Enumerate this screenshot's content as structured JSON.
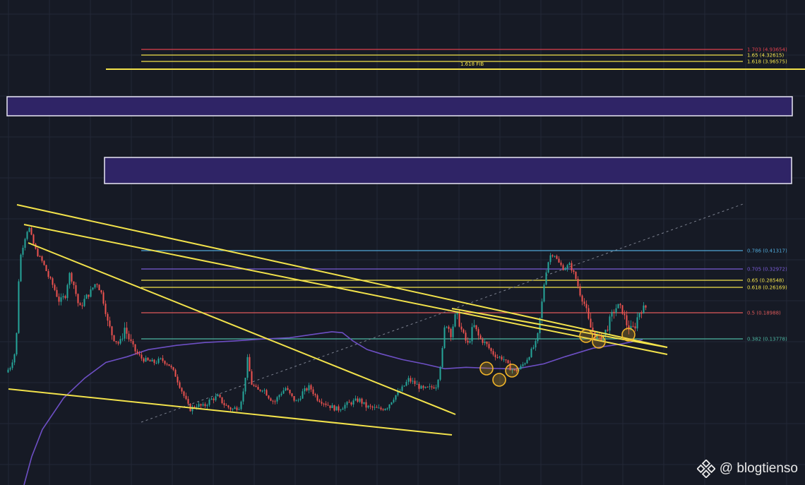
{
  "chart_data": {
    "type": "line",
    "title": "",
    "xlabel": "",
    "ylabel": "",
    "price_path": [
      [
        0,
        0.02
      ],
      [
        6,
        0.04
      ],
      [
        14,
        0.1
      ],
      [
        20,
        0.38
      ],
      [
        26,
        0.46
      ],
      [
        32,
        0.52
      ],
      [
        38,
        0.45
      ],
      [
        44,
        0.4
      ],
      [
        52,
        0.36
      ],
      [
        60,
        0.3
      ],
      [
        68,
        0.26
      ],
      [
        76,
        0.22
      ],
      [
        84,
        0.24
      ],
      [
        90,
        0.31
      ],
      [
        96,
        0.27
      ],
      [
        104,
        0.2
      ],
      [
        112,
        0.23
      ],
      [
        120,
        0.25
      ],
      [
        128,
        0.28
      ],
      [
        136,
        0.24
      ],
      [
        144,
        0.17
      ],
      [
        152,
        0.14
      ],
      [
        160,
        0.12
      ],
      [
        168,
        0.16
      ],
      [
        176,
        0.13
      ],
      [
        184,
        0.09
      ],
      [
        192,
        0.07
      ],
      [
        200,
        0.06
      ],
      [
        210,
        0.055
      ],
      [
        220,
        0.065
      ],
      [
        230,
        0.05
      ],
      [
        240,
        0.01
      ],
      [
        250,
        -0.05
      ],
      [
        260,
        -0.11
      ],
      [
        270,
        -0.095
      ],
      [
        280,
        -0.1
      ],
      [
        290,
        -0.075
      ],
      [
        300,
        -0.065
      ],
      [
        310,
        -0.095
      ],
      [
        320,
        -0.11
      ],
      [
        330,
        -0.1
      ],
      [
        336,
        -0.05
      ],
      [
        342,
        0.065
      ],
      [
        348,
        -0.02
      ],
      [
        356,
        -0.045
      ],
      [
        364,
        -0.035
      ],
      [
        372,
        -0.065
      ],
      [
        380,
        -0.085
      ],
      [
        388,
        -0.055
      ],
      [
        396,
        -0.035
      ],
      [
        404,
        -0.065
      ],
      [
        412,
        -0.085
      ],
      [
        420,
        -0.05
      ],
      [
        430,
        -0.03
      ],
      [
        440,
        -0.07
      ],
      [
        450,
        -0.085
      ],
      [
        460,
        -0.1
      ],
      [
        470,
        -0.11
      ],
      [
        480,
        -0.095
      ],
      [
        490,
        -0.085
      ],
      [
        500,
        -0.075
      ],
      [
        510,
        -0.1
      ],
      [
        520,
        -0.105
      ],
      [
        530,
        -0.11
      ],
      [
        540,
        -0.1
      ],
      [
        550,
        -0.065
      ],
      [
        560,
        -0.04
      ],
      [
        570,
        -0.005
      ],
      [
        580,
        -0.02
      ],
      [
        590,
        -0.04
      ],
      [
        600,
        -0.035
      ],
      [
        610,
        -0.025
      ],
      [
        616,
        0.06
      ],
      [
        622,
        0.175
      ],
      [
        630,
        0.15
      ],
      [
        638,
        0.19
      ],
      [
        646,
        0.15
      ],
      [
        654,
        0.12
      ],
      [
        662,
        0.165
      ],
      [
        670,
        0.14
      ],
      [
        680,
        0.12
      ],
      [
        688,
        0.09
      ],
      [
        696,
        0.075
      ],
      [
        704,
        0.07
      ],
      [
        712,
        0.04
      ],
      [
        720,
        0.025
      ],
      [
        728,
        0.035
      ],
      [
        736,
        0.06
      ],
      [
        744,
        0.095
      ],
      [
        752,
        0.13
      ],
      [
        758,
        0.2
      ],
      [
        764,
        0.31
      ],
      [
        770,
        0.39
      ],
      [
        776,
        0.4
      ],
      [
        782,
        0.36
      ],
      [
        790,
        0.33
      ],
      [
        798,
        0.35
      ],
      [
        806,
        0.3
      ],
      [
        812,
        0.25
      ],
      [
        820,
        0.21
      ],
      [
        826,
        0.165
      ],
      [
        834,
        0.145
      ],
      [
        842,
        0.135
      ],
      [
        850,
        0.155
      ],
      [
        858,
        0.185
      ],
      [
        866,
        0.21
      ],
      [
        872,
        0.2
      ],
      [
        878,
        0.17
      ],
      [
        884,
        0.155
      ],
      [
        890,
        0.16
      ],
      [
        896,
        0.19
      ],
      [
        904,
        0.205
      ]
    ],
    "moving_average": [
      [
        35,
        -0.275
      ],
      [
        50,
        -0.18
      ],
      [
        80,
        -0.07
      ],
      [
        110,
        0.0
      ],
      [
        140,
        0.055
      ],
      [
        170,
        0.075
      ],
      [
        200,
        0.1
      ],
      [
        240,
        0.115
      ],
      [
        280,
        0.125
      ],
      [
        320,
        0.13
      ],
      [
        360,
        0.137
      ],
      [
        400,
        0.14
      ],
      [
        440,
        0.148
      ],
      [
        460,
        0.152
      ],
      [
        475,
        0.15
      ],
      [
        490,
        0.13
      ],
      [
        510,
        0.1
      ],
      [
        530,
        0.085
      ],
      [
        560,
        0.065
      ],
      [
        590,
        0.05
      ],
      [
        620,
        0.033
      ],
      [
        650,
        0.038
      ],
      [
        680,
        0.035
      ],
      [
        720,
        0.032
      ],
      [
        760,
        0.05
      ],
      [
        790,
        0.075
      ],
      [
        830,
        0.105
      ],
      [
        870,
        0.12
      ],
      [
        900,
        0.135
      ]
    ],
    "fib_levels": [
      {
        "ratio": "0.382",
        "price": "0.13778",
        "label": "0.382 (0.13778)",
        "color": "#4db6a2"
      },
      {
        "ratio": "0.5",
        "price": "0.18988",
        "label": "0.5 (0.18988)",
        "color": "#e05a5a"
      },
      {
        "ratio": "0.618",
        "price": "0.26169",
        "label": "0.618 (0.26169)",
        "color": "#f2e24b"
      },
      {
        "ratio": "0.65",
        "price": "0.28548",
        "label": "0.65 (0.28548)",
        "color": "#f2e24b"
      },
      {
        "ratio": "0.705",
        "price": "0.32972",
        "label": "0.705 (0.32972)",
        "color": "#7a5cd6"
      },
      {
        "ratio": "0.786",
        "price": "0.41317",
        "label": "0.786 (0.41317)",
        "color": "#4fa7d6"
      },
      {
        "ratio": "1.618",
        "price": "3.96575",
        "label": "1.618 (3.96575)",
        "color": "#f2e24b"
      },
      {
        "ratio": "1.65",
        "price": "4.32615",
        "label": "1.65 (4.32615)",
        "color": "#f2e24b"
      },
      {
        "ratio": "1.703",
        "price": "4.93654",
        "label": "1.703 (4.93654)",
        "color": "#e0404e"
      }
    ],
    "fib_tag": "1.618 FIB",
    "zones": [
      {
        "name": "upper-zone"
      },
      {
        "name": "lower-zone"
      }
    ],
    "circled_lows": 7,
    "colors": {
      "background": "#161a25",
      "grid": "#232837",
      "up": "#26a69a",
      "down": "#ef5350",
      "trendline": "#f2e24b",
      "moving_average": "#6d4fc4",
      "zone_fill": "#2f2466",
      "zone_border": "#e9e6f5",
      "circle": "#f0b429"
    }
  },
  "watermark": {
    "text": "@ blogtienso",
    "icon": "binance-diamond-icon"
  }
}
